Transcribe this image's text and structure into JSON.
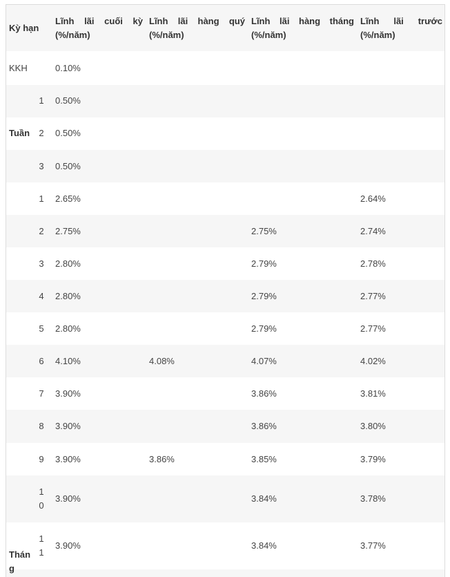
{
  "header": {
    "term": "Kỳ hạn",
    "col_end": [
      "Lĩnh",
      "lãi",
      "cuối",
      "kỳ"
    ],
    "col_quarter": [
      "Lĩnh",
      "lãi",
      "hàng",
      "quý"
    ],
    "col_month": [
      "Lĩnh",
      "lãi",
      "hàng",
      "tháng"
    ],
    "col_before": [
      "Lĩnh",
      "lãi",
      "trước"
    ],
    "unit": "(%/năm)"
  },
  "kkh": {
    "label": "KKH",
    "end": "0.10%"
  },
  "week_group": {
    "label": "Tuần"
  },
  "weeks": [
    {
      "n": "1",
      "end": "0.50%"
    },
    {
      "n": "2",
      "end": "0.50%"
    },
    {
      "n": "3",
      "end": "0.50%"
    }
  ],
  "month_group": {
    "label_line1": "Thán",
    "label_line2": "g"
  },
  "months": [
    {
      "n1": "1",
      "n2": "",
      "end": "2.65%",
      "quarter": "",
      "month": "",
      "before": "2.64%"
    },
    {
      "n1": "2",
      "n2": "",
      "end": "2.75%",
      "quarter": "",
      "month": "2.75%",
      "before": "2.74%"
    },
    {
      "n1": "3",
      "n2": "",
      "end": "2.80%",
      "quarter": "",
      "month": "2.79%",
      "before": "2.78%"
    },
    {
      "n1": "4",
      "n2": "",
      "end": "2.80%",
      "quarter": "",
      "month": "2.79%",
      "before": "2.77%"
    },
    {
      "n1": "5",
      "n2": "",
      "end": "2.80%",
      "quarter": "",
      "month": "2.79%",
      "before": "2.77%"
    },
    {
      "n1": "6",
      "n2": "",
      "end": "4.10%",
      "quarter": "4.08%",
      "month": "4.07%",
      "before": "4.02%"
    },
    {
      "n1": "7",
      "n2": "",
      "end": "3.90%",
      "quarter": "",
      "month": "3.86%",
      "before": "3.81%"
    },
    {
      "n1": "8",
      "n2": "",
      "end": "3.90%",
      "quarter": "",
      "month": "3.86%",
      "before": "3.80%"
    },
    {
      "n1": "9",
      "n2": "",
      "end": "3.90%",
      "quarter": "3.86%",
      "month": "3.85%",
      "before": "3.79%"
    },
    {
      "n1": "1",
      "n2": "0",
      "end": "3.90%",
      "quarter": "",
      "month": "3.84%",
      "before": "3.78%"
    },
    {
      "n1": "1",
      "n2": "1",
      "end": "3.90%",
      "quarter": "",
      "month": "3.84%",
      "before": "3.77%"
    }
  ]
}
